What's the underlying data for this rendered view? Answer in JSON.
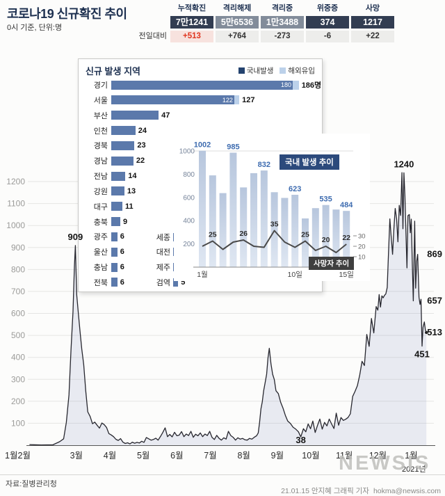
{
  "header": {
    "title": "코로나19 신규확진 추이",
    "subtitle": "0시 기준, 단위:명",
    "stats": {
      "delta_label": "전일대비",
      "columns": [
        {
          "label": "누적확진",
          "value": "7만1241",
          "tone": "dark",
          "delta": "+513",
          "delta_tone": "red"
        },
        {
          "label": "격리해제",
          "value": "5만6536",
          "tone": "gray",
          "delta": "+764",
          "delta_tone": "normal"
        },
        {
          "label": "격리중",
          "value": "1만3488",
          "tone": "gray",
          "delta": "-273",
          "delta_tone": "normal"
        },
        {
          "label": "위중증",
          "value": "374",
          "tone": "dark",
          "delta": "-6",
          "delta_tone": "normal"
        },
        {
          "label": "사망",
          "value": "1217",
          "tone": "dark",
          "delta": "+22",
          "delta_tone": "normal"
        }
      ]
    }
  },
  "colors": {
    "navy_box": "#323d52",
    "gray_box": "#828c9a",
    "delta_red": "#e0351f",
    "bar_navy": "#5b79ab",
    "bar_imported": "#bcd1ea",
    "legend_domestic": "#24436f",
    "badge_navy": "#2c4a7c",
    "badge_dark": "#3f3f3f",
    "mini_bar_label_blue": "#3e6cb0"
  },
  "chart_data": [
    {
      "id": "main-trend",
      "type": "area",
      "title": "코로나19 신규확진 추이",
      "unit": "명",
      "ylim": [
        0,
        1300
      ],
      "yticks": [
        100,
        200,
        300,
        400,
        500,
        600,
        700,
        800,
        900,
        1000,
        1100,
        1200
      ],
      "year_label": "2021년",
      "x_ticks": [
        {
          "label": "1월2월",
          "m": 0.25
        },
        {
          "label": "3월",
          "m": 2
        },
        {
          "label": "4월",
          "m": 3
        },
        {
          "label": "5월",
          "m": 4
        },
        {
          "label": "6월",
          "m": 5
        },
        {
          "label": "7월",
          "m": 6
        },
        {
          "label": "8월",
          "m": 7
        },
        {
          "label": "9월",
          "m": 8
        },
        {
          "label": "10월",
          "m": 9
        },
        {
          "label": "11월",
          "m": 10
        },
        {
          "label": "12월",
          "m": 11
        },
        {
          "label": "1월",
          "m": 12
        }
      ],
      "annotations": [
        {
          "text": "909",
          "m": 1.97,
          "v": 909,
          "pos": "above"
        },
        {
          "text": "38",
          "m": 8.7,
          "v": 38,
          "pos": "below"
        },
        {
          "text": "1240",
          "m": 11.78,
          "v": 1240,
          "pos": "above"
        },
        {
          "text": "869",
          "m": 12.19,
          "v": 869,
          "pos": "right"
        },
        {
          "text": "657",
          "m": 12.06,
          "v": 657,
          "pos": "right"
        },
        {
          "text": "513",
          "m": 12.45,
          "v": 513,
          "pos": "right"
        },
        {
          "text": "451",
          "m": 12.32,
          "v": 451,
          "pos": "below"
        }
      ],
      "points": [
        [
          0.6,
          3
        ],
        [
          0.95,
          1
        ],
        [
          1.3,
          2
        ],
        [
          1.5,
          16
        ],
        [
          1.62,
          29
        ],
        [
          1.7,
          104
        ],
        [
          1.78,
          229
        ],
        [
          1.84,
          433
        ],
        [
          1.9,
          609
        ],
        [
          1.94,
          813
        ],
        [
          1.97,
          909
        ],
        [
          2.01,
          686
        ],
        [
          2.06,
          600
        ],
        [
          2.11,
          518
        ],
        [
          2.16,
          438
        ],
        [
          2.22,
          367
        ],
        [
          2.28,
          248
        ],
        [
          2.34,
          152
        ],
        [
          2.41,
          131
        ],
        [
          2.48,
          98
        ],
        [
          2.55,
          105
        ],
        [
          2.62,
          91
        ],
        [
          2.69,
          78
        ],
        [
          2.76,
          101
        ],
        [
          2.83,
          94
        ],
        [
          2.9,
          81
        ],
        [
          2.97,
          53
        ],
        [
          3.04,
          47
        ],
        [
          3.11,
          39
        ],
        [
          3.18,
          27
        ],
        [
          3.25,
          22
        ],
        [
          3.32,
          30
        ],
        [
          3.39,
          14
        ],
        [
          3.46,
          8
        ],
        [
          3.53,
          11
        ],
        [
          3.6,
          6
        ],
        [
          3.67,
          14
        ],
        [
          3.74,
          9
        ],
        [
          3.81,
          13
        ],
        [
          3.88,
          10
        ],
        [
          3.95,
          18
        ],
        [
          4.02,
          13
        ],
        [
          4.09,
          35
        ],
        [
          4.16,
          29
        ],
        [
          4.23,
          23
        ],
        [
          4.3,
          26
        ],
        [
          4.37,
          32
        ],
        [
          4.44,
          23
        ],
        [
          4.51,
          40
        ],
        [
          4.58,
          58
        ],
        [
          4.65,
          79
        ],
        [
          4.72,
          39
        ],
        [
          4.79,
          49
        ],
        [
          4.86,
          38
        ],
        [
          4.93,
          59
        ],
        [
          5.0,
          43
        ],
        [
          5.07,
          46
        ],
        [
          5.14,
          62
        ],
        [
          5.21,
          39
        ],
        [
          5.28,
          51
        ],
        [
          5.35,
          44
        ],
        [
          5.42,
          63
        ],
        [
          5.49,
          36
        ],
        [
          5.56,
          50
        ],
        [
          5.63,
          43
        ],
        [
          5.7,
          56
        ],
        [
          5.77,
          39
        ],
        [
          5.84,
          51
        ],
        [
          5.91,
          44
        ],
        [
          5.98,
          63
        ],
        [
          6.05,
          36
        ],
        [
          6.12,
          26
        ],
        [
          6.19,
          45
        ],
        [
          6.26,
          31
        ],
        [
          6.33,
          23
        ],
        [
          6.4,
          34
        ],
        [
          6.47,
          28
        ],
        [
          6.54,
          63
        ],
        [
          6.61,
          44
        ],
        [
          6.68,
          36
        ],
        [
          6.75,
          23
        ],
        [
          6.82,
          34
        ],
        [
          6.89,
          28
        ],
        [
          6.96,
          31
        ],
        [
          7.03,
          25
        ],
        [
          7.1,
          23
        ],
        [
          7.17,
          31
        ],
        [
          7.24,
          28
        ],
        [
          7.31,
          36
        ],
        [
          7.38,
          43
        ],
        [
          7.43,
          56
        ],
        [
          7.47,
          103
        ],
        [
          7.51,
          166
        ],
        [
          7.55,
          197
        ],
        [
          7.59,
          246
        ],
        [
          7.63,
          279
        ],
        [
          7.68,
          324
        ],
        [
          7.72,
          397
        ],
        [
          7.76,
          441
        ],
        [
          7.81,
          371
        ],
        [
          7.86,
          323
        ],
        [
          7.91,
          299
        ],
        [
          7.96,
          248
        ],
        [
          8.03,
          235
        ],
        [
          8.1,
          195
        ],
        [
          8.17,
          168
        ],
        [
          8.24,
          136
        ],
        [
          8.31,
          110
        ],
        [
          8.39,
          99
        ],
        [
          8.47,
          82
        ],
        [
          8.55,
          73
        ],
        [
          8.63,
          61
        ],
        [
          8.7,
          38
        ],
        [
          8.78,
          75
        ],
        [
          8.85,
          61
        ],
        [
          8.92,
          97
        ],
        [
          8.99,
          75
        ],
        [
          9.06,
          110
        ],
        [
          9.13,
          58
        ],
        [
          9.2,
          91
        ],
        [
          9.27,
          119
        ],
        [
          9.34,
          73
        ],
        [
          9.41,
          104
        ],
        [
          9.48,
          88
        ],
        [
          9.55,
          119
        ],
        [
          9.62,
          97
        ],
        [
          9.69,
          76
        ],
        [
          9.76,
          146
        ],
        [
          9.83,
          91
        ],
        [
          9.9,
          126
        ],
        [
          9.97,
          113
        ],
        [
          10.04,
          118
        ],
        [
          10.11,
          126
        ],
        [
          10.18,
          143
        ],
        [
          10.25,
          222
        ],
        [
          10.32,
          245
        ],
        [
          10.39,
          271
        ],
        [
          10.46,
          320
        ],
        [
          10.53,
          382
        ],
        [
          10.6,
          363
        ],
        [
          10.67,
          504
        ],
        [
          10.74,
          450
        ],
        [
          10.81,
          577
        ],
        [
          10.88,
          511
        ],
        [
          10.95,
          631
        ],
        [
          11.0,
          615
        ],
        [
          11.04,
          686
        ],
        [
          11.08,
          629
        ],
        [
          11.12,
          680
        ],
        [
          11.16,
          671
        ],
        [
          11.2,
          682
        ],
        [
          11.24,
          689
        ],
        [
          11.28,
          718
        ],
        [
          11.32,
          880
        ],
        [
          11.36,
          1030
        ],
        [
          11.4,
          950
        ],
        [
          11.44,
          869
        ],
        [
          11.48,
          985
        ],
        [
          11.52,
          1078
        ],
        [
          11.56,
          1030
        ],
        [
          11.6,
          926
        ],
        [
          11.64,
          1092
        ],
        [
          11.68,
          1046
        ],
        [
          11.72,
          1241
        ],
        [
          11.75,
          985
        ],
        [
          11.78,
          1240
        ],
        [
          11.81,
          1132
        ],
        [
          11.84,
          970
        ],
        [
          11.87,
          807
        ],
        [
          11.9,
          1045
        ],
        [
          11.94,
          1050
        ],
        [
          11.97,
          967
        ],
        [
          12.0,
          1029
        ],
        [
          12.03,
          824
        ],
        [
          12.06,
          657
        ],
        [
          12.1,
          1020
        ],
        [
          12.13,
          715
        ],
        [
          12.16,
          838
        ],
        [
          12.19,
          869
        ],
        [
          12.23,
          674
        ],
        [
          12.26,
          641
        ],
        [
          12.29,
          664
        ],
        [
          12.32,
          451
        ],
        [
          12.35,
          537
        ],
        [
          12.39,
          561
        ],
        [
          12.42,
          524
        ],
        [
          12.45,
          513
        ]
      ]
    },
    {
      "id": "regions",
      "type": "bar",
      "title": "신규 발생 지역",
      "legend": [
        {
          "label": "국내발생",
          "color": "#24436f"
        },
        {
          "label": "해외유입",
          "color": "#bcd1ea"
        }
      ],
      "rows": [
        {
          "name": "경기",
          "domestic": 180,
          "imported": 6,
          "label": "186명",
          "inside": "180"
        },
        {
          "name": "서울",
          "domestic": 122,
          "imported": 5,
          "label": "127",
          "inside": "122"
        },
        {
          "name": "부산",
          "domestic": 47,
          "imported": 0,
          "label": "47"
        },
        {
          "name": "인천",
          "domestic": 24,
          "imported": 0,
          "label": "24"
        },
        {
          "name": "경북",
          "domestic": 23,
          "imported": 0,
          "label": "23"
        },
        {
          "name": "경남",
          "domestic": 22,
          "imported": 0,
          "label": "22"
        },
        {
          "name": "전남",
          "domestic": 14,
          "imported": 0,
          "label": "14"
        },
        {
          "name": "강원",
          "domestic": 13,
          "imported": 0,
          "label": "13"
        },
        {
          "name": "대구",
          "domestic": 11,
          "imported": 0,
          "label": "11"
        },
        {
          "name": "충북",
          "domestic": 9,
          "imported": 0,
          "label": "9"
        },
        {
          "name": "광주",
          "domestic": 6,
          "imported": 0,
          "label": "6"
        },
        {
          "name": "울산",
          "domestic": 6,
          "imported": 0,
          "label": "6"
        },
        {
          "name": "충남",
          "domestic": 6,
          "imported": 0,
          "label": "6"
        },
        {
          "name": "전북",
          "domestic": 6,
          "imported": 0,
          "label": "6"
        }
      ],
      "side_rows": [
        {
          "name": "세종",
          "value": 4
        },
        {
          "name": "대전",
          "value": 3
        },
        {
          "name": "제주",
          "value": 1
        },
        {
          "name": "검역",
          "value": 5
        }
      ]
    },
    {
      "id": "daily-january",
      "type": "bar+line",
      "bar_series_label": "국내 발생 추이",
      "line_series_label": "사망자 추이",
      "days": [
        "1",
        "2",
        "3",
        "4",
        "5",
        "6",
        "7",
        "8",
        "9",
        "10",
        "11",
        "12",
        "13",
        "14",
        "15"
      ],
      "domestic": [
        1002,
        790,
        637,
        985,
        686,
        809,
        832,
        645,
        596,
        623,
        419,
        508,
        535,
        496,
        484
      ],
      "domestic_labeled_days": [
        1,
        4,
        7,
        10,
        13,
        15
      ],
      "deaths": [
        20,
        25,
        17,
        24,
        26,
        20,
        19,
        35,
        24,
        19,
        25,
        16,
        20,
        14,
        22
      ],
      "deaths_labeled_days": [
        2,
        5,
        8,
        11,
        13,
        15
      ],
      "left_axis_ticks": [
        200,
        400,
        600,
        800,
        1000
      ],
      "right_axis_ticks": [
        10,
        20,
        30
      ],
      "x_tick_labels": [
        {
          "day": 1,
          "label": "1월"
        },
        {
          "day": 10,
          "label": "10일"
        },
        {
          "day": 15,
          "label": "15일"
        }
      ]
    }
  ],
  "footer": {
    "source": "자료:질병관리청",
    "credit": "21.01.15 안지혜 그래픽 기자",
    "email": "hokma@newsis.com",
    "watermark": "NEWSIS"
  }
}
